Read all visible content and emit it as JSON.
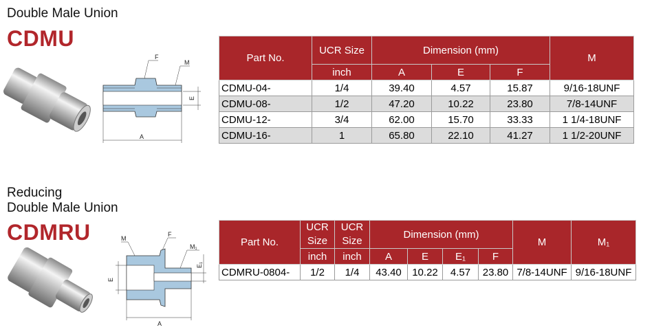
{
  "sections": [
    {
      "title_lines": [
        "Double Male Union"
      ],
      "code": "CDMU",
      "diagram_labels": [
        "F",
        "M",
        "E",
        "A"
      ],
      "table": {
        "header_row1": [
          "Part No.",
          "UCR Size",
          "Dimension (mm)",
          "M"
        ],
        "header_row2": [
          "inch",
          "A",
          "E",
          "F"
        ],
        "rows": [
          [
            "CDMU-04-",
            "1/4",
            "39.40",
            "4.57",
            "15.87",
            "9/16-18UNF"
          ],
          [
            "CDMU-08-",
            "1/2",
            "47.20",
            "10.22",
            "23.80",
            "7/8-14UNF"
          ],
          [
            "CDMU-12-",
            "3/4",
            "62.00",
            "15.70",
            "33.33",
            "1 1/4-18UNF"
          ],
          [
            "CDMU-16-",
            "1",
            "65.80",
            "22.10",
            "41.27",
            "1 1/2-20UNF"
          ]
        ]
      }
    },
    {
      "title_lines": [
        "Reducing",
        "Double Male Union"
      ],
      "code": "CDMRU",
      "diagram_labels": [
        "M",
        "F",
        "M₁",
        "E₁",
        "E",
        "A"
      ],
      "table": {
        "header_row1": [
          "Part No.",
          "UCR Size",
          "UCR Size",
          "Dimension (mm)",
          "M",
          "M₁"
        ],
        "header_row2": [
          "inch",
          "inch",
          "A",
          "E",
          "E₁",
          "F"
        ],
        "rows": [
          [
            "CDMRU-0804-",
            "1/2",
            "1/4",
            "43.40",
            "10.22",
            "4.57",
            "23.80",
            "7/8-14UNF",
            "9/16-18UNF"
          ]
        ]
      }
    }
  ]
}
